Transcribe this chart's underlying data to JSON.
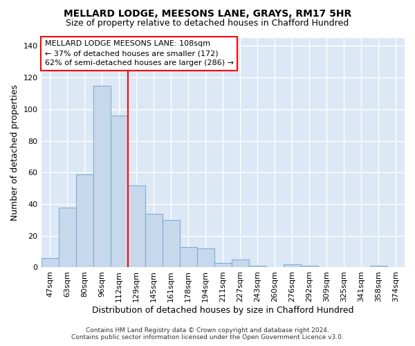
{
  "title1": "MELLARD LODGE, MEESONS LANE, GRAYS, RM17 5HR",
  "title2": "Size of property relative to detached houses in Chafford Hundred",
  "xlabel": "Distribution of detached houses by size in Chafford Hundred",
  "ylabel": "Number of detached properties",
  "categories": [
    "47sqm",
    "63sqm",
    "80sqm",
    "96sqm",
    "112sqm",
    "129sqm",
    "145sqm",
    "161sqm",
    "178sqm",
    "194sqm",
    "211sqm",
    "227sqm",
    "243sqm",
    "260sqm",
    "276sqm",
    "292sqm",
    "309sqm",
    "325sqm",
    "341sqm",
    "358sqm",
    "374sqm"
  ],
  "values": [
    6,
    38,
    59,
    115,
    96,
    52,
    34,
    30,
    13,
    12,
    3,
    5,
    1,
    0,
    2,
    1,
    0,
    0,
    0,
    1,
    0
  ],
  "bar_color": "#c8d8ec",
  "bar_edge_color": "#7aafd4",
  "red_line_index": 4,
  "ylim": [
    0,
    145
  ],
  "yticks": [
    0,
    20,
    40,
    60,
    80,
    100,
    120,
    140
  ],
  "annotation_line1": "MELLARD LODGE MEESONS LANE: 108sqm",
  "annotation_line2": "← 37% of detached houses are smaller (172)",
  "annotation_line3": "62% of semi-detached houses are larger (286) →",
  "figure_bg": "#ffffff",
  "axes_bg": "#dce8f5",
  "grid_color": "#ffffff",
  "footer1": "Contains HM Land Registry data © Crown copyright and database right 2024.",
  "footer2": "Contains public sector information licensed under the Open Government Licence v3.0."
}
